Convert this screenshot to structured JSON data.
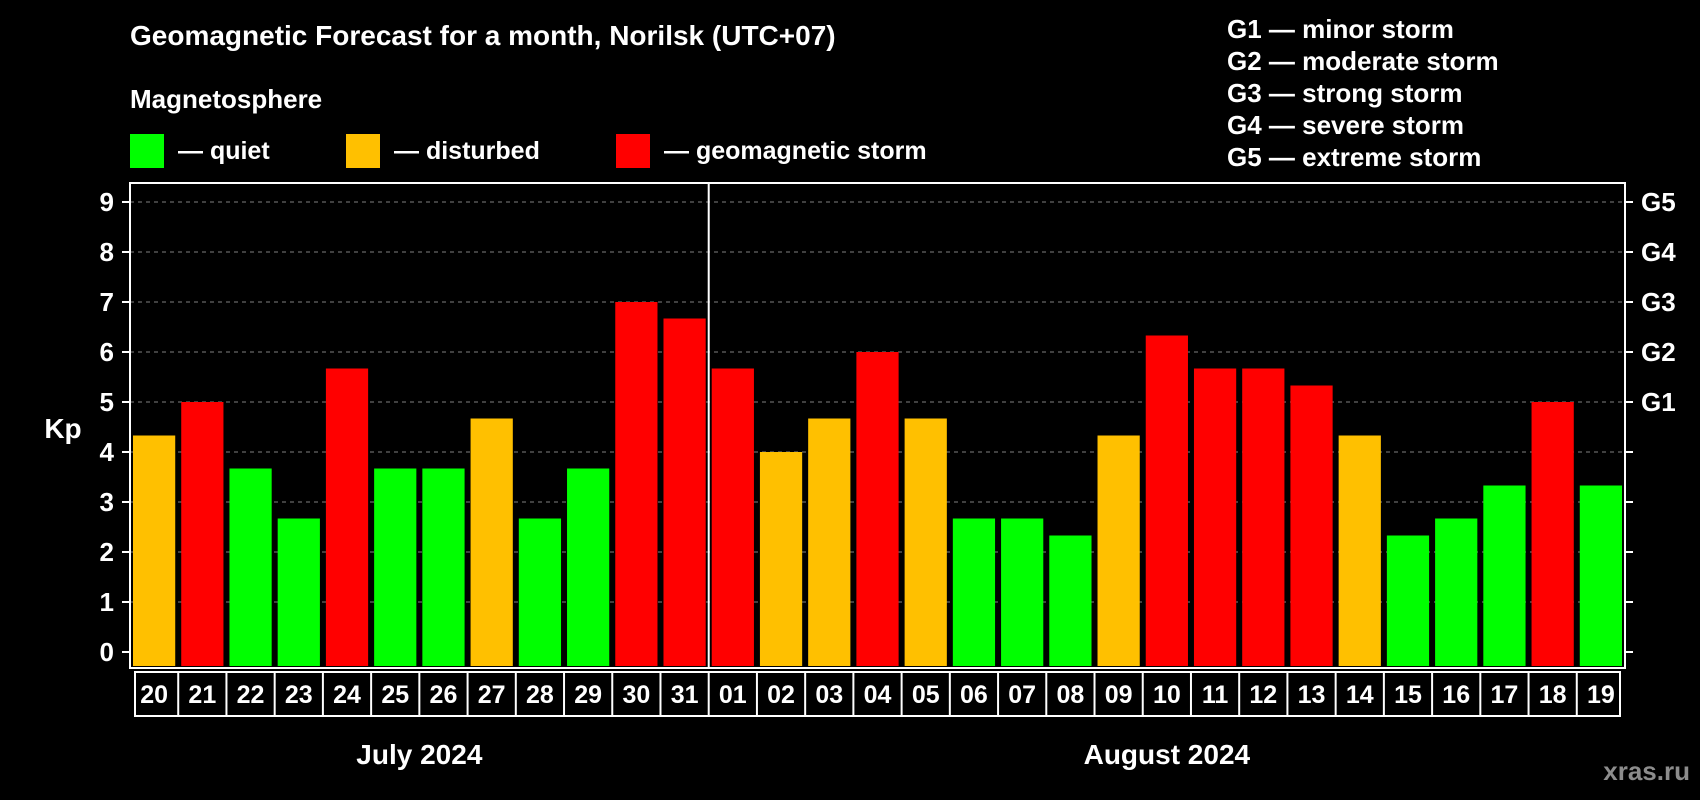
{
  "colors": {
    "quiet": "#00ff00",
    "disturbed": "#ffc000",
    "storm": "#ff0000",
    "background": "#000000",
    "frame": "#ffffff",
    "grid": "#808080",
    "watermark": "#8c8c8c"
  },
  "header": {
    "title": "Geomagnetic Forecast for a month, Norilsk (UTC+07)",
    "subtitle": "Magnetosphere"
  },
  "legend": [
    {
      "label": "— quiet",
      "color_key": "quiet"
    },
    {
      "label": "— disturbed",
      "color_key": "disturbed"
    },
    {
      "label": "— geomagnetic storm",
      "color_key": "storm"
    }
  ],
  "storm_levels": [
    "G1 — minor storm",
    "G2 — moderate storm",
    "G3 — strong storm",
    "G4 — severe storm",
    "G5 — extreme storm"
  ],
  "watermark": "xras.ru",
  "chart_data": {
    "type": "bar",
    "ylabel": "Kp",
    "ylim": [
      0,
      9
    ],
    "yticks": [
      "0",
      "1",
      "2",
      "3",
      "4",
      "5",
      "6",
      "7",
      "8",
      "9"
    ],
    "right_axis_labels": [
      {
        "kp": 5,
        "label": "G1"
      },
      {
        "kp": 6,
        "label": "G2"
      },
      {
        "kp": 7,
        "label": "G3"
      },
      {
        "kp": 8,
        "label": "G4"
      },
      {
        "kp": 9,
        "label": "G5"
      }
    ],
    "grid": true,
    "month_divider_after_index": 11,
    "months": [
      {
        "label": "July 2024",
        "start": 0,
        "end": 11
      },
      {
        "label": "August 2024",
        "start": 12,
        "end": 30
      }
    ],
    "categories": [
      "20",
      "21",
      "22",
      "23",
      "24",
      "25",
      "26",
      "27",
      "28",
      "29",
      "30",
      "31",
      "01",
      "02",
      "03",
      "04",
      "05",
      "06",
      "07",
      "08",
      "09",
      "10",
      "11",
      "12",
      "13",
      "14",
      "15",
      "16",
      "17",
      "18",
      "19"
    ],
    "values": [
      4.33,
      5.0,
      3.67,
      2.67,
      5.67,
      3.67,
      3.67,
      4.67,
      2.67,
      3.67,
      7.0,
      6.67,
      5.67,
      4.0,
      4.67,
      6.0,
      4.67,
      2.67,
      2.67,
      2.33,
      4.33,
      6.33,
      5.67,
      5.67,
      5.33,
      4.33,
      2.33,
      2.67,
      3.33,
      5.0,
      3.33
    ],
    "status": [
      "disturbed",
      "storm",
      "quiet",
      "quiet",
      "storm",
      "quiet",
      "quiet",
      "disturbed",
      "quiet",
      "quiet",
      "storm",
      "storm",
      "storm",
      "disturbed",
      "disturbed",
      "storm",
      "disturbed",
      "quiet",
      "quiet",
      "quiet",
      "disturbed",
      "storm",
      "storm",
      "storm",
      "storm",
      "disturbed",
      "quiet",
      "quiet",
      "quiet",
      "storm",
      "quiet"
    ]
  }
}
